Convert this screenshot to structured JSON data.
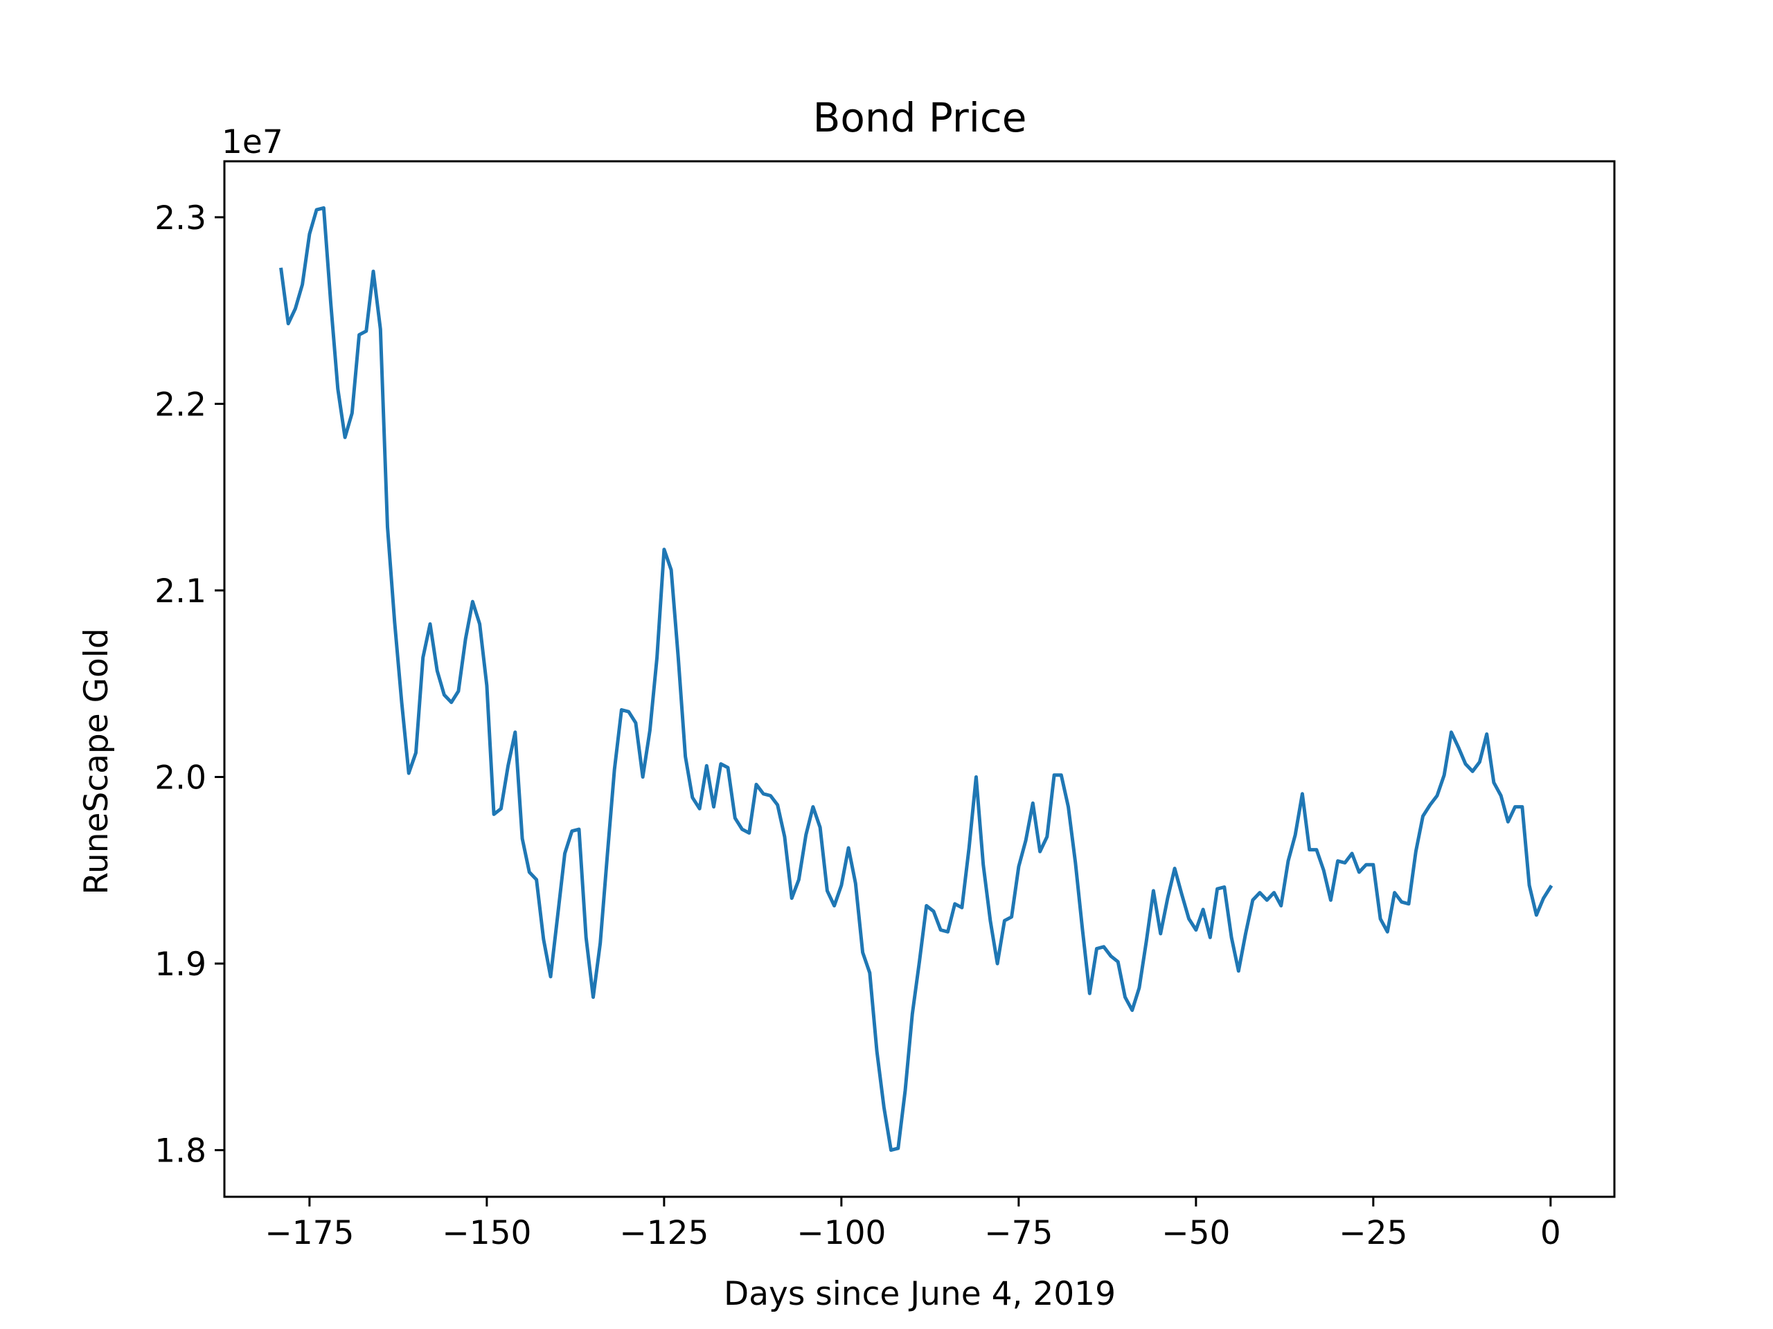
{
  "chart_data": {
    "type": "line",
    "title": "Bond Price",
    "xlabel": "Days since June 4, 2019",
    "ylabel": "RuneScape Gold",
    "y_offset_label": "1e7",
    "xlim": [
      -187,
      9
    ],
    "ylim": [
      17750000,
      23300000
    ],
    "x_ticks": [
      -175,
      -150,
      -125,
      -100,
      -75,
      -50,
      -25,
      0
    ],
    "x_tick_labels": [
      "−175",
      "−150",
      "−125",
      "−100",
      "−75",
      "−50",
      "−25",
      "0"
    ],
    "y_ticks": [
      18000000,
      19000000,
      20000000,
      21000000,
      22000000,
      23000000
    ],
    "y_tick_labels": [
      "1.8",
      "1.9",
      "2.0",
      "2.1",
      "2.2",
      "2.3"
    ],
    "grid": false,
    "series": [
      {
        "color": "#1f77b4",
        "x": [
          -179,
          -178,
          -177,
          -176,
          -175,
          -174,
          -173,
          -172,
          -171,
          -170,
          -169,
          -168,
          -167,
          -166,
          -165,
          -164,
          -163,
          -162,
          -161,
          -160,
          -159,
          -158,
          -157,
          -156,
          -155,
          -154,
          -153,
          -152,
          -151,
          -150,
          -149,
          -148,
          -147,
          -146,
          -145,
          -144,
          -143,
          -142,
          -141,
          -140,
          -139,
          -138,
          -137,
          -136,
          -135,
          -134,
          -133,
          -132,
          -131,
          -130,
          -129,
          -128,
          -127,
          -126,
          -125,
          -124,
          -123,
          -122,
          -121,
          -120,
          -119,
          -118,
          -117,
          -116,
          -115,
          -114,
          -113,
          -112,
          -111,
          -110,
          -109,
          -108,
          -107,
          -106,
          -105,
          -104,
          -103,
          -102,
          -101,
          -100,
          -99,
          -98,
          -97,
          -96,
          -95,
          -94,
          -93,
          -92,
          -91,
          -90,
          -89,
          -88,
          -87,
          -86,
          -85,
          -84,
          -83,
          -82,
          -81,
          -80,
          -79,
          -78,
          -77,
          -76,
          -75,
          -74,
          -73,
          -72,
          -71,
          -70,
          -69,
          -68,
          -67,
          -66,
          -65,
          -64,
          -63,
          -62,
          -61,
          -60,
          -59,
          -58,
          -57,
          -56,
          -55,
          -54,
          -53,
          -52,
          -51,
          -50,
          -49,
          -48,
          -47,
          -46,
          -45,
          -44,
          -43,
          -42,
          -41,
          -40,
          -39,
          -38,
          -37,
          -36,
          -35,
          -34,
          -33,
          -32,
          -31,
          -30,
          -29,
          -28,
          -27,
          -26,
          -25,
          -24,
          -23,
          -22,
          -21,
          -20,
          -19,
          -18,
          -17,
          -16,
          -15,
          -14,
          -13,
          -12,
          -11,
          -10,
          -9,
          -8,
          -7,
          -6,
          -5,
          -4,
          -3,
          -2,
          -1,
          0
        ],
        "y": [
          22720000,
          22430000,
          22510000,
          22640000,
          22910000,
          23040000,
          23050000,
          22540000,
          22080000,
          21820000,
          21950000,
          22370000,
          22390000,
          22710000,
          22400000,
          21340000,
          20830000,
          20400000,
          20020000,
          20130000,
          20640000,
          20820000,
          20570000,
          20440000,
          20400000,
          20460000,
          20740000,
          20940000,
          20820000,
          20490000,
          19800000,
          19830000,
          20060000,
          20240000,
          19670000,
          19490000,
          19450000,
          19130000,
          18930000,
          19260000,
          19590000,
          19710000,
          19720000,
          19140000,
          18820000,
          19110000,
          19580000,
          20040000,
          20360000,
          20350000,
          20290000,
          20000000,
          20250000,
          20640000,
          21220000,
          21110000,
          20640000,
          20110000,
          19890000,
          19830000,
          20060000,
          19840000,
          20070000,
          20050000,
          19780000,
          19720000,
          19700000,
          19960000,
          19910000,
          19900000,
          19850000,
          19680000,
          19350000,
          19450000,
          19690000,
          19840000,
          19730000,
          19390000,
          19310000,
          19420000,
          19620000,
          19430000,
          19060000,
          18950000,
          18530000,
          18230000,
          18000000,
          18010000,
          18320000,
          18730000,
          19010000,
          19310000,
          19280000,
          19180000,
          19170000,
          19320000,
          19300000,
          19620000,
          20000000,
          19530000,
          19230000,
          19000000,
          19230000,
          19250000,
          19520000,
          19660000,
          19860000,
          19600000,
          19680000,
          20010000,
          20010000,
          19840000,
          19540000,
          19180000,
          18840000,
          19080000,
          19090000,
          19040000,
          19010000,
          18820000,
          18750000,
          18870000,
          19120000,
          19390000,
          19160000,
          19350000,
          19510000,
          19370000,
          19240000,
          19180000,
          19290000,
          19140000,
          19400000,
          19410000,
          19140000,
          18960000,
          19160000,
          19340000,
          19380000,
          19340000,
          19380000,
          19310000,
          19550000,
          19690000,
          19910000,
          19610000,
          19610000,
          19500000,
          19340000,
          19550000,
          19540000,
          19590000,
          19490000,
          19530000,
          19530000,
          19240000,
          19170000,
          19380000,
          19330000,
          19320000,
          19600000,
          19790000,
          19850000,
          19900000,
          20010000,
          20240000,
          20160000,
          20070000,
          20030000,
          20080000,
          20230000,
          19970000,
          19900000,
          19760000,
          19840000,
          19840000,
          19420000,
          19260000,
          19350000,
          19410000
        ]
      }
    ]
  }
}
